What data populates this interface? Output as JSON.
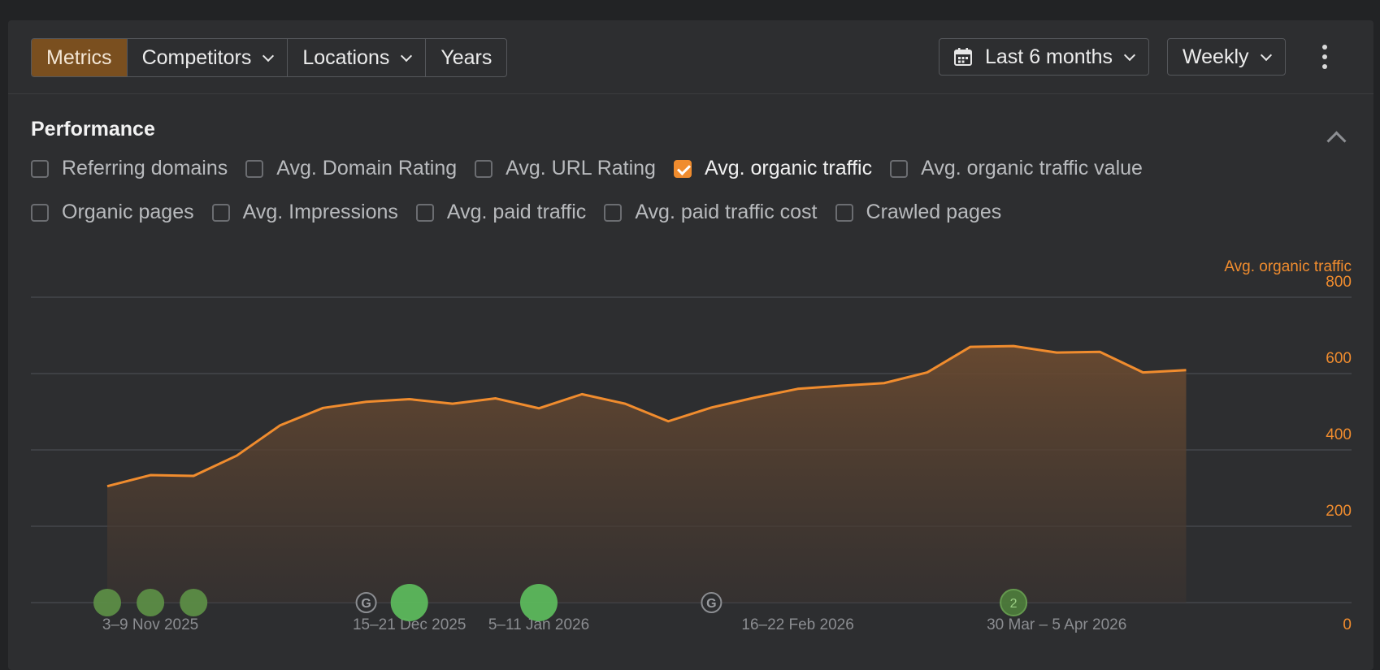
{
  "toolbar": {
    "segments": [
      {
        "label": "Metrics",
        "active": true,
        "dropdown": false
      },
      {
        "label": "Competitors",
        "active": false,
        "dropdown": true
      },
      {
        "label": "Locations",
        "active": false,
        "dropdown": true
      },
      {
        "label": "Years",
        "active": false,
        "dropdown": false
      }
    ],
    "date_range": "Last 6 months",
    "interval": "Weekly",
    "more_icon": "kebab-vertical-icon",
    "calendar_icon": "calendar-icon"
  },
  "section": {
    "title": "Performance",
    "collapse_icon": "chevron-up-icon"
  },
  "metrics": {
    "row1": [
      {
        "label": "Referring domains",
        "checked": false
      },
      {
        "label": "Avg. Domain Rating",
        "checked": false
      },
      {
        "label": "Avg. URL Rating",
        "checked": false
      },
      {
        "label": "Avg. organic traffic",
        "checked": true
      },
      {
        "label": "Avg. organic traffic value",
        "checked": false
      }
    ],
    "row2": [
      {
        "label": "Organic pages",
        "checked": false
      },
      {
        "label": "Avg. Impressions",
        "checked": false
      },
      {
        "label": "Avg. paid traffic",
        "checked": false
      },
      {
        "label": "Avg. paid traffic cost",
        "checked": false
      },
      {
        "label": "Crawled pages",
        "checked": false
      }
    ]
  },
  "colors": {
    "accent": "#f08c2e",
    "marker": "#5cb85c",
    "grid": "#44464a"
  },
  "chart_data": {
    "type": "area",
    "ylabel": "Avg. organic traffic",
    "ylim": [
      0,
      800
    ],
    "yticks": [
      0,
      200,
      400,
      600,
      800
    ],
    "xtick_labels": [
      {
        "index": 1,
        "label": "3–9 Nov 2025"
      },
      {
        "index": 7,
        "label": "15–21 Dec 2025"
      },
      {
        "index": 10,
        "label": "5–11 Jan 2026"
      },
      {
        "index": 16,
        "label": "16–22 Feb 2026"
      },
      {
        "index": 22,
        "label": "30 Mar – 5 Apr 2026"
      }
    ],
    "values": [
      305,
      334,
      332,
      385,
      464,
      510,
      526,
      533,
      521,
      535,
      509,
      546,
      521,
      475,
      511,
      537,
      560,
      568,
      575,
      603,
      670,
      672,
      655,
      657,
      603,
      609
    ],
    "events": [
      {
        "index": 0,
        "type": "dot",
        "size": "small"
      },
      {
        "index": 1,
        "type": "dot",
        "size": "small"
      },
      {
        "index": 2,
        "type": "dot",
        "size": "small"
      },
      {
        "index": 6,
        "type": "google",
        "size": "small"
      },
      {
        "index": 7,
        "type": "dot",
        "size": "large"
      },
      {
        "index": 10,
        "type": "dot",
        "size": "large"
      },
      {
        "index": 14,
        "type": "google",
        "size": "small"
      },
      {
        "index": 21,
        "type": "count",
        "label": "2",
        "size": "small"
      }
    ]
  }
}
